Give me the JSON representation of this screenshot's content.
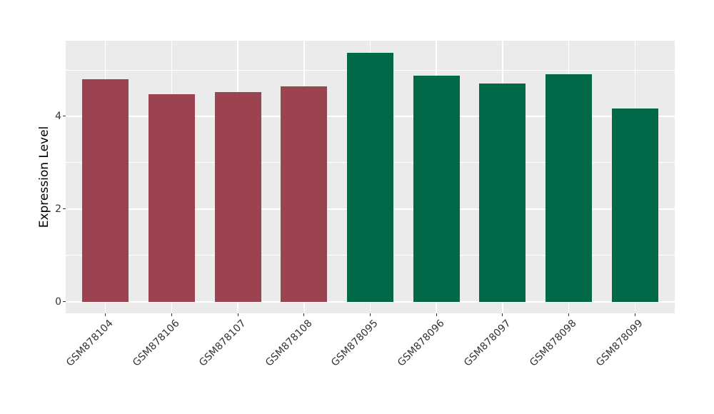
{
  "chart_data": {
    "type": "bar",
    "title": "",
    "xlabel": "",
    "ylabel": "Expression Level",
    "categories": [
      "GSM878104",
      "GSM878106",
      "GSM878107",
      "GSM878108",
      "GSM878095",
      "GSM878096",
      "GSM878097",
      "GSM878098",
      "GSM878099"
    ],
    "values": [
      4.8,
      4.47,
      4.52,
      4.64,
      5.37,
      4.87,
      4.7,
      4.91,
      4.17
    ],
    "bar_colors": [
      "#9B4351",
      "#9B4351",
      "#9B4351",
      "#9B4351",
      "#016948",
      "#016948",
      "#016948",
      "#016948",
      "#016948"
    ],
    "group_colors": {
      "maroon_group": "#9B4351",
      "green_group": "#016948"
    },
    "y_axis": {
      "tick_labels": [
        "0",
        "2",
        "4"
      ],
      "ticks": [
        0,
        2,
        4
      ],
      "minor_gridlines": [
        1,
        3,
        5
      ],
      "range": [
        -0.25,
        5.63
      ]
    },
    "legend": "none",
    "grid": true,
    "style": {
      "panel_background": "#EBEBEB",
      "gridline_color": "#FFFFFF",
      "tick_text_color": "#333333",
      "axis_title_color": "#000000",
      "figure_background": "#FFFFFF"
    }
  }
}
